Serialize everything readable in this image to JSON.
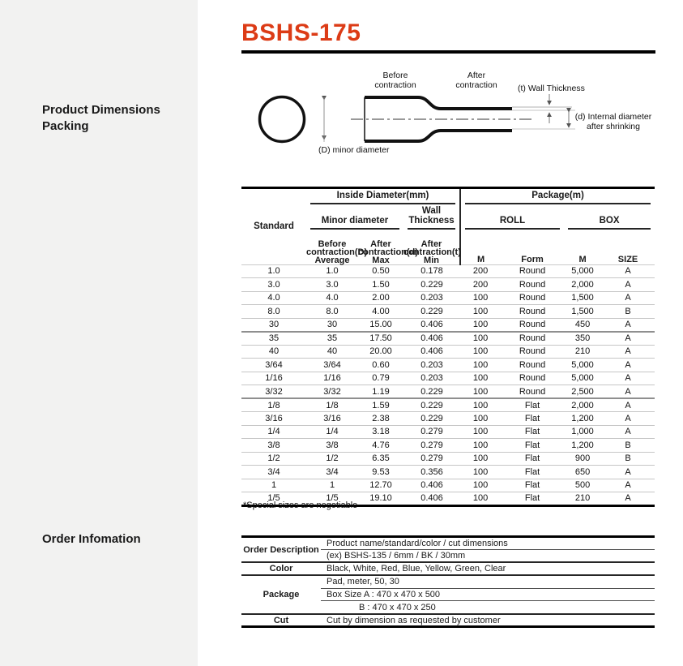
{
  "title": "BSHS-175",
  "sidebar": {
    "section1_line1": "Product Dimensions",
    "section1_line2": "Packing",
    "section2": "Order Infomation"
  },
  "diagram": {
    "before_label": "Before\ncontraction",
    "after_label": "After\ncontraction",
    "wall_thickness_label": "(t) Wall Thickness",
    "internal_diameter_label": "(d) Internal diameter\nafter shrinking",
    "minor_diameter_label": "(D) minor diameter"
  },
  "spec_table": {
    "header": {
      "standard": "Standard",
      "inside_diameter": "Inside Diameter(mm)",
      "package": "Package(m)",
      "minor_diameter": "Minor diameter",
      "wall_thickness": "Wall Thickness",
      "roll": "ROLL",
      "box": "BOX",
      "before_contraction": "Before\ncontraction(D)\nAverage",
      "after_contraction_d": "After\ncontraction(d)\nMax",
      "after_contraction_t": "After\ncontraction(t)\nMin",
      "roll_m": "M",
      "roll_form": "Form",
      "box_m": "M",
      "box_size": "SIZE"
    },
    "rows": [
      [
        "1.0",
        "1.0",
        "0.50",
        "0.178",
        "200",
        "Round",
        "5,000",
        "A"
      ],
      [
        "3.0",
        "3.0",
        "1.50",
        "0.229",
        "200",
        "Round",
        "2,000",
        "A"
      ],
      [
        "4.0",
        "4.0",
        "2.00",
        "0.203",
        "100",
        "Round",
        "1,500",
        "A"
      ],
      [
        "8.0",
        "8.0",
        "4.00",
        "0.229",
        "100",
        "Round",
        "1,500",
        "B"
      ],
      [
        "30",
        "30",
        "15.00",
        "0.406",
        "100",
        "Round",
        "450",
        "A"
      ],
      [
        "35",
        "35",
        "17.50",
        "0.406",
        "100",
        "Round",
        "350",
        "A"
      ],
      [
        "40",
        "40",
        "20.00",
        "0.406",
        "100",
        "Round",
        "210",
        "A"
      ],
      [
        "3/64",
        "3/64",
        "0.60",
        "0.203",
        "100",
        "Round",
        "5,000",
        "A"
      ],
      [
        "1/16",
        "1/16",
        "0.79",
        "0.203",
        "100",
        "Round",
        "5,000",
        "A"
      ],
      [
        "3/32",
        "3/32",
        "1.19",
        "0.229",
        "100",
        "Round",
        "2,500",
        "A"
      ],
      [
        "1/8",
        "1/8",
        "1.59",
        "0.229",
        "100",
        "Flat",
        "2,000",
        "A"
      ],
      [
        "3/16",
        "3/16",
        "2.38",
        "0.229",
        "100",
        "Flat",
        "1,200",
        "A"
      ],
      [
        "1/4",
        "1/4",
        "3.18",
        "0.279",
        "100",
        "Flat",
        "1,000",
        "A"
      ],
      [
        "3/8",
        "3/8",
        "4.76",
        "0.279",
        "100",
        "Flat",
        "1,200",
        "B"
      ],
      [
        "1/2",
        "1/2",
        "6.35",
        "0.279",
        "100",
        "Flat",
        "900",
        "B"
      ],
      [
        "3/4",
        "3/4",
        "9.53",
        "0.356",
        "100",
        "Flat",
        "650",
        "A"
      ],
      [
        "1",
        "1",
        "12.70",
        "0.406",
        "100",
        "Flat",
        "500",
        "A"
      ],
      [
        "1/5",
        "1/5",
        "19.10",
        "0.406",
        "100",
        "Flat",
        "210",
        "A"
      ]
    ],
    "footnote": "*Special sizes are negotiable"
  },
  "order_table": {
    "order_description_label": "Order Description",
    "order_description_line1": "Product name/standard/color / cut dimensions",
    "order_description_line2": "(ex) BSHS-135 / 6mm / BK / 30mm",
    "color_label": "Color",
    "color_value": "Black, White, Red, Blue, Yellow, Green, Clear",
    "package_label": "Package",
    "package_line1": "Pad, meter,  50, 30",
    "package_line2": "Box Size A : 470 x 470 x 500",
    "package_line3": "B : 470 x 470 x 250",
    "cut_label": "Cut",
    "cut_value": "Cut by dimension as requested by customer"
  },
  "colors": {
    "accent": "#dc3b16",
    "sidebar_bg": "#f2f2f1",
    "text": "#1a1a1a",
    "line_dark": "#262626",
    "line_light": "#c6c6c6"
  }
}
